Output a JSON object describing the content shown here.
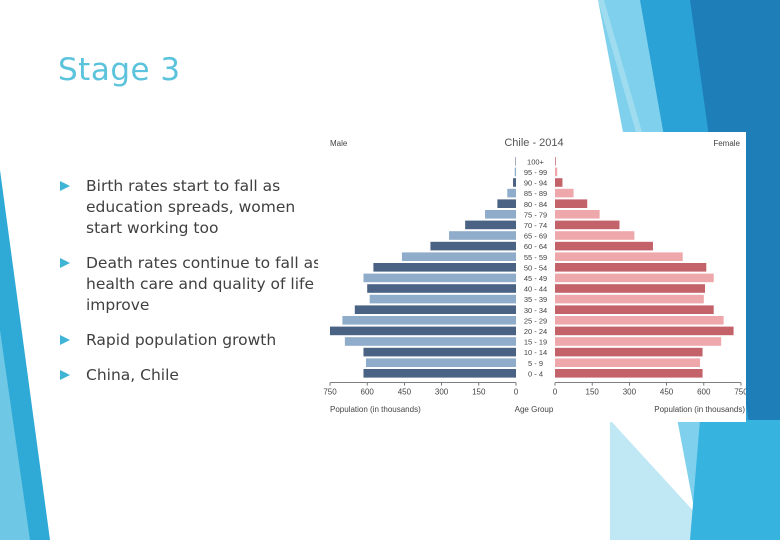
{
  "slide": {
    "title": "Stage 3",
    "bullets": [
      "Birth rates start to fall as education spreads, women start working too",
      "Death rates continue to fall as health care and quality of life improve",
      "Rapid population growth",
      "China, Chile"
    ]
  },
  "colors": {
    "title": "#5bc3dc",
    "text": "#404040",
    "bullet_marker": "#3fb4d4",
    "male_dark": "#4a6283",
    "male_light": "#8facca",
    "female_dark": "#c4626a",
    "female_light": "#eea8ac"
  },
  "chart_data": {
    "type": "bar",
    "orientation": "horizontal",
    "layout": "population-pyramid",
    "title": "Chile - 2014",
    "left_label": "Male",
    "right_label": "Female",
    "xlabel_left": "Population (in thousands)",
    "xlabel_center": "Age Group",
    "xlabel_right": "Population (in thousands)",
    "xlim": [
      0,
      750
    ],
    "ticks": [
      0,
      150,
      300,
      450,
      600,
      750
    ],
    "categories": [
      "100+",
      "95 - 99",
      "90 - 94",
      "85 - 89",
      "80 - 84",
      "75 - 79",
      "70 - 74",
      "65 - 69",
      "60 - 64",
      "55 - 59",
      "50 - 54",
      "45 - 49",
      "40 - 44",
      "35 - 39",
      "30 - 34",
      "25 - 29",
      "20 - 24",
      "15 - 19",
      "10 - 14",
      "5 - 9",
      "0 - 4"
    ],
    "series": [
      {
        "name": "Male",
        "values": [
          2,
          5,
          12,
          35,
          75,
          125,
          205,
          270,
          345,
          460,
          575,
          615,
          600,
          590,
          650,
          700,
          750,
          690,
          615,
          605,
          615
        ]
      },
      {
        "name": "Female",
        "values": [
          3,
          9,
          30,
          75,
          130,
          180,
          260,
          320,
          395,
          515,
          610,
          640,
          605,
          600,
          640,
          680,
          720,
          670,
          595,
          585,
          595
        ]
      }
    ]
  }
}
